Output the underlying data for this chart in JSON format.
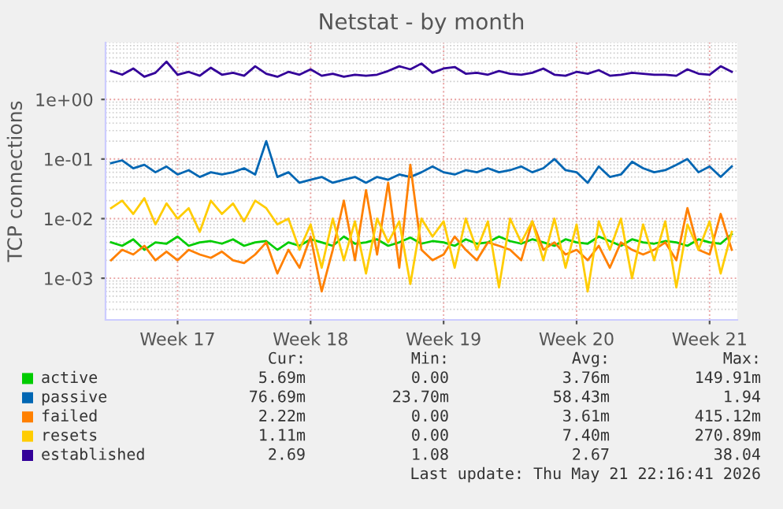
{
  "chart_data": {
    "type": "line",
    "title": "Netstat - by month",
    "ylabel": "TCP connections",
    "log": "y",
    "grid": true,
    "legend": "bottom",
    "marker": "none",
    "line_style": "solid",
    "ylim": [
      0.0002,
      9
    ],
    "yticks": [
      {
        "value": 0.001,
        "label": "1e-03"
      },
      {
        "value": 0.01,
        "label": "1e-02"
      },
      {
        "value": 0.1,
        "label": "1e-01"
      },
      {
        "value": 1,
        "label": "1e+00"
      }
    ],
    "categories": [
      null,
      null,
      null,
      null,
      null,
      null,
      "Week 17",
      null,
      null,
      null,
      null,
      null,
      null,
      null,
      null,
      null,
      null,
      null,
      "Week 18",
      null,
      null,
      null,
      null,
      null,
      null,
      null,
      null,
      null,
      null,
      null,
      "Week 19",
      null,
      null,
      null,
      null,
      null,
      null,
      null,
      null,
      null,
      null,
      null,
      "Week 20",
      null,
      null,
      null,
      null,
      null,
      null,
      null,
      null,
      null,
      null,
      null,
      "Week 21",
      null,
      null
    ],
    "series": [
      {
        "name": "active",
        "color": "#00cc00",
        "values": [
          0.004,
          0.0035,
          0.0045,
          0.003,
          0.004,
          0.0038,
          0.005,
          0.0035,
          0.004,
          0.0042,
          0.0038,
          0.0045,
          0.0035,
          0.004,
          0.0042,
          0.003,
          0.004,
          0.0035,
          0.0045,
          0.004,
          0.0035,
          0.005,
          0.0038,
          0.004,
          0.0045,
          0.0035,
          0.004,
          0.0048,
          0.0038,
          0.0042,
          0.004,
          0.0035,
          0.0045,
          0.0038,
          0.004,
          0.005,
          0.0042,
          0.0038,
          0.0045,
          0.004,
          0.0035,
          0.0045,
          0.004,
          0.0038,
          0.005,
          0.0042,
          0.0035,
          0.0045,
          0.004,
          0.0038,
          0.0042,
          0.004,
          0.0035,
          0.0045,
          0.004,
          0.0038,
          0.0055
        ]
      },
      {
        "name": "passive",
        "color": "#0066b3",
        "values": [
          0.085,
          0.095,
          0.07,
          0.08,
          0.06,
          0.075,
          0.055,
          0.065,
          0.05,
          0.06,
          0.055,
          0.06,
          0.07,
          0.055,
          0.2,
          0.05,
          0.06,
          0.04,
          0.045,
          0.05,
          0.04,
          0.045,
          0.05,
          0.04,
          0.05,
          0.045,
          0.055,
          0.05,
          0.06,
          0.075,
          0.06,
          0.055,
          0.065,
          0.06,
          0.07,
          0.06,
          0.065,
          0.075,
          0.06,
          0.07,
          0.1,
          0.065,
          0.06,
          0.04,
          0.075,
          0.05,
          0.055,
          0.09,
          0.07,
          0.06,
          0.065,
          0.08,
          0.1,
          0.06,
          0.075,
          0.05,
          0.075
        ]
      },
      {
        "name": "failed",
        "color": "#ff8000",
        "values": [
          0.002,
          0.003,
          0.0025,
          0.0035,
          0.002,
          0.0028,
          0.002,
          0.003,
          0.0025,
          0.0022,
          0.0028,
          0.002,
          0.0018,
          0.0025,
          0.004,
          0.0012,
          0.003,
          0.0015,
          0.005,
          0.0006,
          0.003,
          0.02,
          0.002,
          0.03,
          0.0025,
          0.04,
          0.0015,
          0.08,
          0.003,
          0.002,
          0.0025,
          0.005,
          0.003,
          0.002,
          0.004,
          0.0035,
          0.003,
          0.002,
          0.009,
          0.003,
          0.004,
          0.0025,
          0.003,
          0.002,
          0.0035,
          0.0015,
          0.004,
          0.003,
          0.0025,
          0.003,
          0.004,
          0.002,
          0.015,
          0.003,
          0.0025,
          0.012,
          0.003
        ]
      },
      {
        "name": "resets",
        "color": "#ffcc00",
        "values": [
          0.015,
          0.02,
          0.012,
          0.022,
          0.008,
          0.018,
          0.01,
          0.015,
          0.006,
          0.02,
          0.012,
          0.018,
          0.009,
          0.02,
          0.015,
          0.008,
          0.01,
          0.003,
          0.008,
          0.0015,
          0.01,
          0.002,
          0.009,
          0.0012,
          0.01,
          0.004,
          0.009,
          0.0008,
          0.01,
          0.005,
          0.009,
          0.0015,
          0.01,
          0.003,
          0.009,
          0.0007,
          0.01,
          0.004,
          0.009,
          0.002,
          0.01,
          0.0015,
          0.008,
          0.0006,
          0.009,
          0.003,
          0.01,
          0.001,
          0.008,
          0.002,
          0.009,
          0.0007,
          0.008,
          0.003,
          0.009,
          0.0012,
          0.006
        ]
      },
      {
        "name": "established",
        "color": "#330099",
        "values": [
          3.0,
          2.6,
          3.3,
          2.4,
          2.8,
          4.3,
          2.6,
          2.9,
          2.5,
          3.4,
          2.6,
          2.8,
          2.5,
          3.6,
          2.7,
          2.4,
          2.9,
          2.6,
          3.2,
          2.5,
          2.7,
          2.4,
          2.6,
          2.5,
          2.6,
          3.0,
          3.6,
          3.2,
          4.0,
          2.8,
          3.3,
          3.5,
          2.7,
          2.8,
          2.6,
          3.0,
          2.7,
          2.6,
          2.8,
          3.3,
          2.6,
          2.5,
          2.9,
          2.7,
          3.1,
          2.5,
          2.6,
          2.8,
          2.7,
          2.6,
          2.6,
          2.5,
          3.2,
          2.7,
          2.6,
          3.6,
          2.9
        ]
      }
    ],
    "annotations": [
      "Cur:",
      "Min:",
      "Avg:",
      "Max:",
      "5.69m",
      "0.00",
      "3.76m",
      "149.91m",
      "76.69m",
      "23.70m",
      "58.43m",
      "1.94",
      "2.22m",
      "0.00",
      "3.61m",
      "415.12m",
      "1.11m",
      "0.00",
      "7.40m",
      "270.89m",
      "2.69",
      "1.08",
      "2.67",
      "38.04",
      "Last update: Thu May 21 22:16:41 2026"
    ]
  }
}
